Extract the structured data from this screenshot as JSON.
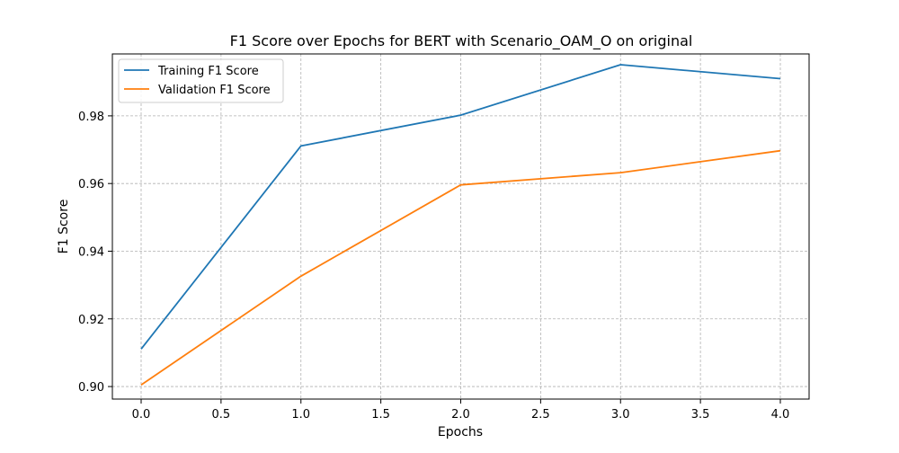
{
  "chart_data": {
    "type": "line",
    "title": "F1 Score over Epochs for BERT with Scenario_OAM_O on original",
    "xlabel": "Epochs",
    "ylabel": "F1 Score",
    "xlim": [
      -0.18,
      4.18
    ],
    "ylim": [
      0.8963,
      0.9983
    ],
    "xticks": [
      0.0,
      0.5,
      1.0,
      1.5,
      2.0,
      2.5,
      3.0,
      3.5,
      4.0
    ],
    "xtick_labels": [
      "0.0",
      "0.5",
      "1.0",
      "1.5",
      "2.0",
      "2.5",
      "3.0",
      "3.5",
      "4.0"
    ],
    "yticks": [
      0.9,
      0.92,
      0.94,
      0.96,
      0.98
    ],
    "ytick_labels": [
      "0.90",
      "0.92",
      "0.94",
      "0.96",
      "0.98"
    ],
    "grid": true,
    "legend_position": "top-left",
    "x": [
      0,
      1,
      2,
      3,
      4
    ],
    "series": [
      {
        "name": "Training F1 Score",
        "color": "#1f77b4",
        "values": [
          0.9111,
          0.9711,
          0.9802,
          0.9951,
          0.991
        ]
      },
      {
        "name": "Validation F1 Score",
        "color": "#ff7f0e",
        "values": [
          0.9005,
          0.9326,
          0.9596,
          0.9632,
          0.9697
        ]
      }
    ]
  }
}
